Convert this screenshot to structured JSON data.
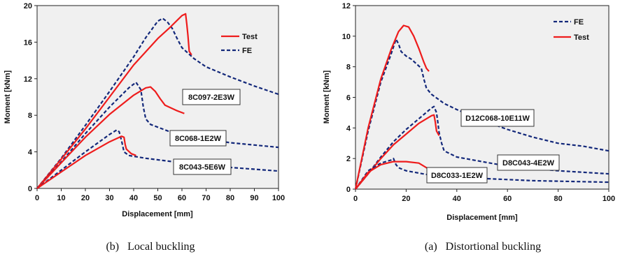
{
  "chart_data": [
    {
      "type": "line",
      "xlabel": "Displacement [mm]",
      "ylabel": "Moment [kNm]",
      "xlim": [
        0,
        100
      ],
      "ylim": [
        0,
        20
      ],
      "xticks": [
        "0",
        "10",
        "20",
        "30",
        "40",
        "50",
        "60",
        "70",
        "80",
        "90",
        "100"
      ],
      "yticks": [
        "0",
        "4",
        "8",
        "12",
        "16",
        "20"
      ],
      "legend": {
        "position": "top-right",
        "items": [
          {
            "name": "Test",
            "color": "#ee1c1c",
            "style": "solid"
          },
          {
            "name": "FE",
            "color": "#13287a",
            "style": "dashed"
          }
        ]
      },
      "specimens": [
        {
          "label": "8C097-2E3W",
          "test": [
            [
              0,
              0
            ],
            [
              10,
              3.2
            ],
            [
              20,
              6.5
            ],
            [
              30,
              10.0
            ],
            [
              40,
              13.5
            ],
            [
              50,
              16.4
            ],
            [
              55,
              17.6
            ],
            [
              60,
              18.9
            ],
            [
              61.5,
              19.1
            ],
            [
              62,
              18.0
            ],
            [
              62.5,
              16.7
            ],
            [
              63,
              15.0
            ],
            [
              64,
              14.6
            ]
          ],
          "fe": [
            [
              0,
              0
            ],
            [
              10,
              3.3
            ],
            [
              20,
              6.9
            ],
            [
              30,
              10.6
            ],
            [
              40,
              14.4
            ],
            [
              45,
              16.5
            ],
            [
              50,
              18.3
            ],
            [
              52,
              18.6
            ],
            [
              54,
              18.2
            ],
            [
              56,
              17.5
            ],
            [
              58,
              16.4
            ],
            [
              60,
              15.4
            ],
            [
              65,
              14.2
            ],
            [
              70,
              13.3
            ],
            [
              80,
              12.2
            ],
            [
              90,
              11.2
            ],
            [
              100,
              10.3
            ]
          ]
        },
        {
          "label": "8C068-1E2W",
          "test": [
            [
              0,
              0
            ],
            [
              10,
              2.8
            ],
            [
              20,
              5.6
            ],
            [
              30,
              8.1
            ],
            [
              40,
              10.2
            ],
            [
              45,
              11.0
            ],
            [
              47,
              11.1
            ],
            [
              49,
              10.6
            ],
            [
              51,
              9.8
            ],
            [
              53,
              9.1
            ],
            [
              58,
              8.5
            ],
            [
              61,
              8.2
            ]
          ],
          "fe": [
            [
              0,
              0
            ],
            [
              10,
              2.9
            ],
            [
              20,
              6.0
            ],
            [
              30,
              8.9
            ],
            [
              38,
              11.0
            ],
            [
              41,
              11.6
            ],
            [
              43,
              10.8
            ],
            [
              44,
              8.9
            ],
            [
              45,
              7.6
            ],
            [
              47,
              7.0
            ],
            [
              55,
              6.2
            ],
            [
              65,
              5.6
            ],
            [
              80,
              5.0
            ],
            [
              100,
              4.5
            ]
          ]
        },
        {
          "label": "8C043-5E6W",
          "test": [
            [
              0,
              0
            ],
            [
              10,
              1.8
            ],
            [
              20,
              3.6
            ],
            [
              30,
              5.1
            ],
            [
              35,
              5.7
            ],
            [
              36,
              5.6
            ],
            [
              36.5,
              4.8
            ],
            [
              37,
              4.3
            ],
            [
              39,
              3.8
            ],
            [
              41,
              3.6
            ]
          ],
          "fe": [
            [
              0,
              0
            ],
            [
              10,
              2.0
            ],
            [
              20,
              4.0
            ],
            [
              30,
              5.9
            ],
            [
              33,
              6.4
            ],
            [
              34,
              6.2
            ],
            [
              35,
              5.2
            ],
            [
              36,
              4.0
            ],
            [
              38,
              3.6
            ],
            [
              45,
              3.3
            ],
            [
              60,
              2.8
            ],
            [
              80,
              2.3
            ],
            [
              100,
              1.9
            ]
          ]
        }
      ],
      "caption": "(b)   Local buckling"
    },
    {
      "type": "line",
      "xlabel": "Displacement [mm]",
      "ylabel": "Moment [kNm]",
      "xlim": [
        0,
        100
      ],
      "ylim": [
        0,
        12
      ],
      "xticks": [
        "0",
        "20",
        "40",
        "60",
        "80",
        "100"
      ],
      "yticks": [
        "0",
        "2",
        "4",
        "6",
        "8",
        "10",
        "12"
      ],
      "legend": {
        "position": "top-right",
        "items": [
          {
            "name": "FE",
            "color": "#13287a",
            "style": "dashed"
          },
          {
            "name": "Test",
            "color": "#ee1c1c",
            "style": "solid"
          }
        ]
      },
      "specimens": [
        {
          "label": "D12C068-10E11W",
          "test": [
            [
              0,
              0
            ],
            [
              5,
              4.0
            ],
            [
              10,
              7.2
            ],
            [
              14,
              9.1
            ],
            [
              17,
              10.3
            ],
            [
              19,
              10.7
            ],
            [
              21,
              10.6
            ],
            [
              23,
              10.0
            ],
            [
              25,
              9.2
            ],
            [
              27,
              8.3
            ],
            [
              28,
              7.9
            ],
            [
              29,
              7.7
            ]
          ],
          "fe": [
            [
              0,
              0
            ],
            [
              5,
              3.8
            ],
            [
              10,
              7.0
            ],
            [
              14,
              8.8
            ],
            [
              16,
              9.8
            ],
            [
              17,
              9.5
            ],
            [
              18,
              9.0
            ],
            [
              20,
              8.7
            ],
            [
              22,
              8.5
            ],
            [
              24,
              8.2
            ],
            [
              26,
              7.9
            ],
            [
              27,
              7.2
            ],
            [
              28,
              6.6
            ],
            [
              30,
              6.2
            ],
            [
              35,
              5.6
            ],
            [
              40,
              5.2
            ],
            [
              50,
              4.5
            ],
            [
              60,
              3.9
            ],
            [
              70,
              3.4
            ],
            [
              80,
              3.0
            ],
            [
              90,
              2.8
            ],
            [
              100,
              2.5
            ]
          ]
        },
        {
          "label": "D8C043-4E2W",
          "test": [
            [
              0,
              0
            ],
            [
              5,
              1.0
            ],
            [
              10,
              2.0
            ],
            [
              15,
              2.9
            ],
            [
              20,
              3.6
            ],
            [
              25,
              4.3
            ],
            [
              30,
              4.8
            ],
            [
              31,
              4.85
            ],
            [
              31.5,
              4.4
            ],
            [
              32,
              3.8
            ],
            [
              33,
              3.5
            ]
          ],
          "fe": [
            [
              0,
              0
            ],
            [
              5,
              1.0
            ],
            [
              10,
              2.1
            ],
            [
              15,
              3.1
            ],
            [
              20,
              3.9
            ],
            [
              25,
              4.6
            ],
            [
              30,
              5.3
            ],
            [
              31,
              5.4
            ],
            [
              32,
              5.0
            ],
            [
              32.5,
              4.4
            ],
            [
              33,
              3.7
            ],
            [
              34,
              3.0
            ],
            [
              35,
              2.5
            ],
            [
              40,
              2.1
            ],
            [
              50,
              1.8
            ],
            [
              60,
              1.5
            ],
            [
              80,
              1.2
            ],
            [
              100,
              1.0
            ]
          ]
        },
        {
          "label": "D8C033-1E2W",
          "test": [
            [
              0,
              0
            ],
            [
              5,
              1.1
            ],
            [
              10,
              1.6
            ],
            [
              15,
              1.8
            ],
            [
              20,
              1.8
            ],
            [
              25,
              1.7
            ],
            [
              28,
              1.4
            ],
            [
              29,
              1.3
            ]
          ],
          "fe": [
            [
              0,
              0
            ],
            [
              5,
              1.2
            ],
            [
              10,
              1.7
            ],
            [
              14,
              1.9
            ],
            [
              15,
              2.0
            ],
            [
              16,
              1.6
            ],
            [
              17,
              1.4
            ],
            [
              20,
              1.2
            ],
            [
              30,
              0.9
            ],
            [
              50,
              0.7
            ],
            [
              70,
              0.55
            ],
            [
              100,
              0.45
            ]
          ]
        }
      ],
      "caption": "(a)   Distortional buckling"
    }
  ]
}
